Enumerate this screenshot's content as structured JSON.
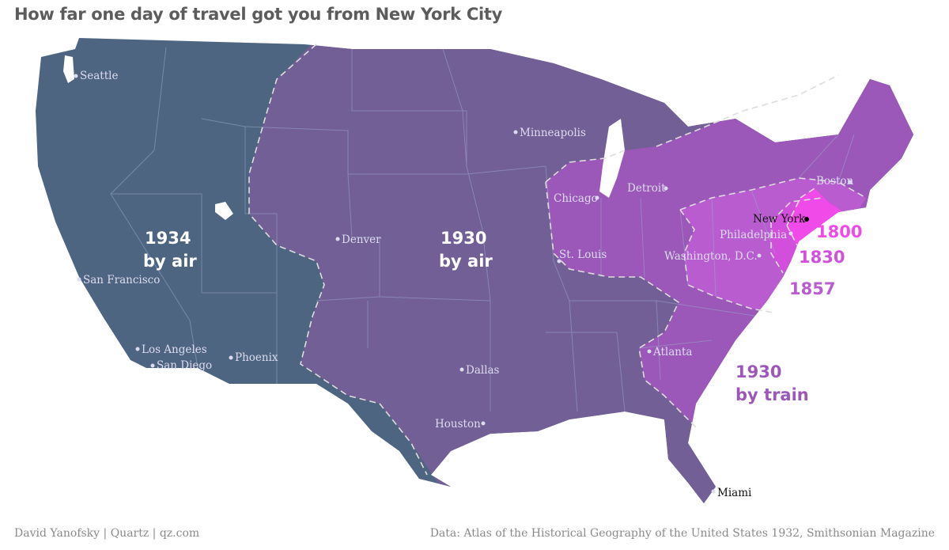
{
  "title": "How far one day of travel got you from New York City",
  "zones": [
    {
      "id": "air-1934",
      "label_line1": "1934",
      "label_line2": "by air",
      "color": "#4e6581"
    },
    {
      "id": "air-1930",
      "label_line1": "1930",
      "label_line2": "by air",
      "color": "#725f96"
    },
    {
      "id": "train-1930",
      "label_line1": "1930",
      "label_line2": "by train",
      "color": "#9b58b8"
    },
    {
      "id": "y1857",
      "label": "1857",
      "color": "#b95cd0"
    },
    {
      "id": "y1830",
      "label": "1830",
      "color": "#d24fdb"
    },
    {
      "id": "y1800",
      "label": "1800",
      "color": "#f04ae8"
    }
  ],
  "cities": {
    "seattle": "Seattle",
    "san_francisco": "San Francisco",
    "los_angeles": "Los Angeles",
    "san_diego": "San Diego",
    "phoenix": "Phoenix",
    "denver": "Denver",
    "minneapolis": "Minneapolis",
    "dallas": "Dallas",
    "houston": "Houston",
    "chicago": "Chicago",
    "st_louis": "St. Louis",
    "detroit": "Detroit",
    "atlanta": "Atlanta",
    "miami": "Miami",
    "washington": "Washington, D.C.",
    "philadelphia": "Philadelphia",
    "boston": "Boston",
    "new_york": "New York"
  },
  "footer": {
    "credit": "David Yanofsky | Quartz | qz.com",
    "source": "Data: Atlas of the Historical Geography of the United States 1932, Smithsonian Magazine"
  }
}
